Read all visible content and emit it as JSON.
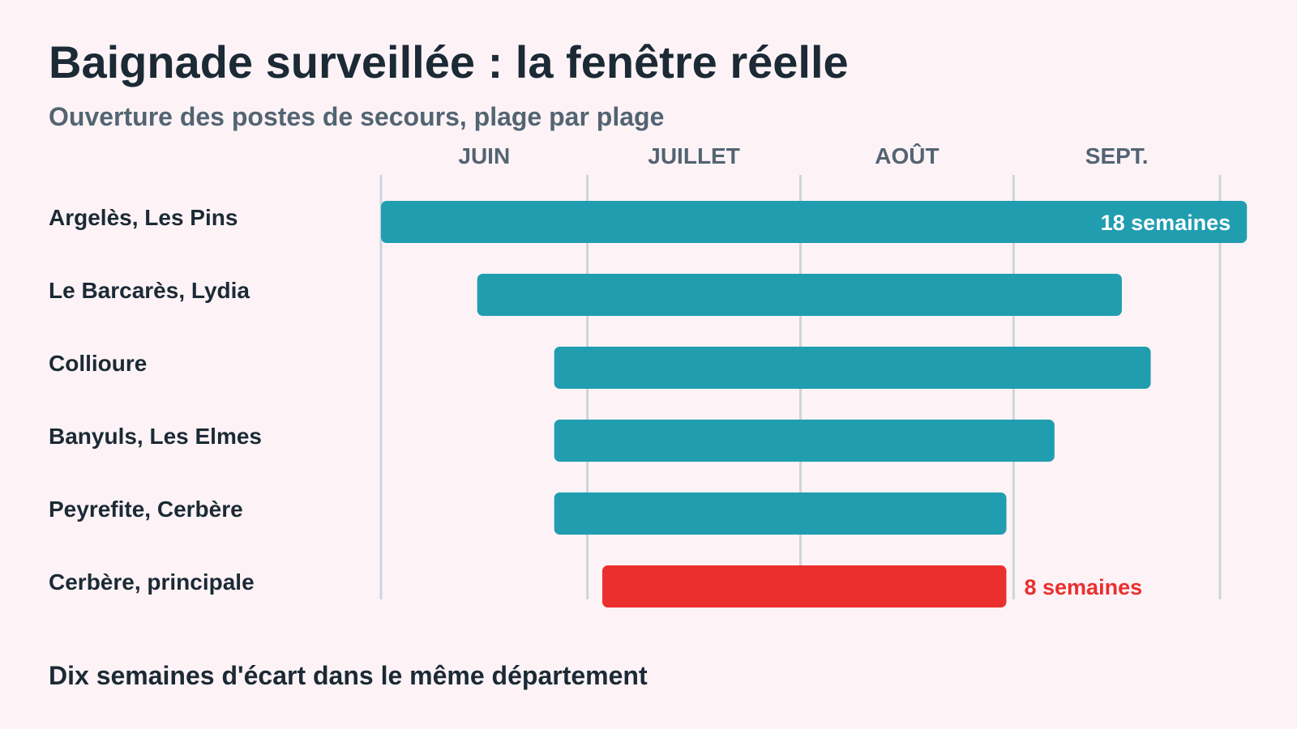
{
  "title": "Baignade surveillée : la fenêtre réelle",
  "subtitle": "Ouverture des postes de secours, plage par plage",
  "footer": "Dix semaines d'écart dans le même département",
  "colors": {
    "bar": "#219db0",
    "highlight": "#eb2f2f",
    "grid": "#ccd5dc",
    "inside_label": "#ffffff"
  },
  "chart_data": {
    "type": "gantt",
    "x_unit": "semaines",
    "months": [
      "JUIN",
      "JUILLET",
      "AOÛT",
      "SEPT."
    ],
    "month_length_weeks": [
      4.29,
      4.43,
      4.43,
      4.29
    ],
    "grid": true,
    "bars": [
      {
        "label": "Argelès, Les Pins",
        "start_week": 0,
        "end_week": 18,
        "data_label": "18 semaines",
        "label_position": "inside-end",
        "highlight": false
      },
      {
        "label": "Le Barcarès, Lydia",
        "start_week": 2,
        "end_week": 15.4,
        "highlight": false
      },
      {
        "label": "Collioure",
        "start_week": 3.6,
        "end_week": 16,
        "highlight": false
      },
      {
        "label": "Banyuls, Les Elmes",
        "start_week": 3.6,
        "end_week": 14,
        "highlight": false
      },
      {
        "label": "Peyrefite, Cerbère",
        "start_week": 3.6,
        "end_week": 13,
        "highlight": false
      },
      {
        "label": "Cerbère, principale",
        "start_week": 4.6,
        "end_week": 13,
        "data_label": "8 semaines",
        "label_position": "outside-end",
        "highlight": true
      }
    ]
  }
}
